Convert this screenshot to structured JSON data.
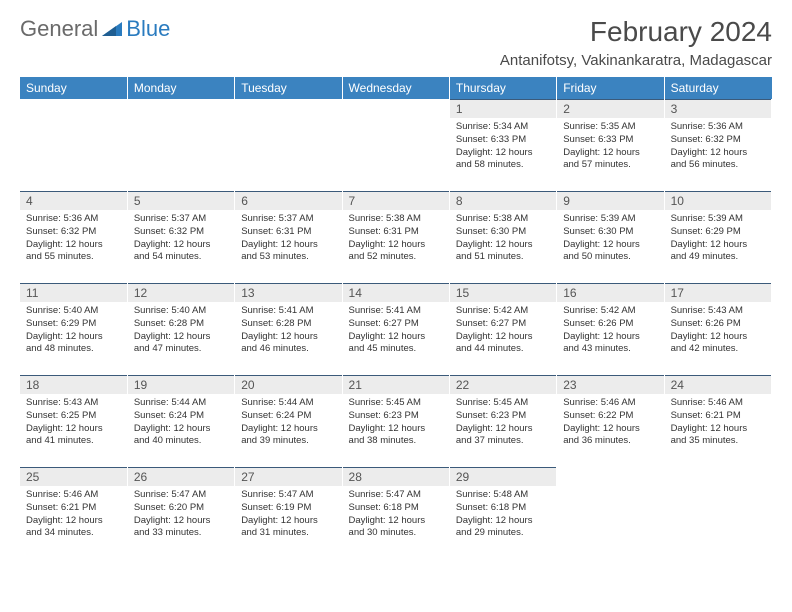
{
  "brand": {
    "part1": "General",
    "part2": "Blue"
  },
  "title": "February 2024",
  "location": "Antanifotsy, Vakinankaratra, Madagascar",
  "colors": {
    "header_bg": "#3b83c0",
    "header_text": "#ffffff",
    "daynum_bg": "#ececec",
    "daynum_border": "#3b5a7a",
    "body_text": "#333333",
    "logo_gray": "#6a6a6a",
    "logo_blue": "#2a7bbf",
    "page_bg": "#ffffff"
  },
  "day_headers": [
    "Sunday",
    "Monday",
    "Tuesday",
    "Wednesday",
    "Thursday",
    "Friday",
    "Saturday"
  ],
  "weeks": [
    [
      {
        "n": "",
        "sr": "",
        "ss": "",
        "dl": ""
      },
      {
        "n": "",
        "sr": "",
        "ss": "",
        "dl": ""
      },
      {
        "n": "",
        "sr": "",
        "ss": "",
        "dl": ""
      },
      {
        "n": "",
        "sr": "",
        "ss": "",
        "dl": ""
      },
      {
        "n": "1",
        "sr": "Sunrise: 5:34 AM",
        "ss": "Sunset: 6:33 PM",
        "dl": "Daylight: 12 hours and 58 minutes."
      },
      {
        "n": "2",
        "sr": "Sunrise: 5:35 AM",
        "ss": "Sunset: 6:33 PM",
        "dl": "Daylight: 12 hours and 57 minutes."
      },
      {
        "n": "3",
        "sr": "Sunrise: 5:36 AM",
        "ss": "Sunset: 6:32 PM",
        "dl": "Daylight: 12 hours and 56 minutes."
      }
    ],
    [
      {
        "n": "4",
        "sr": "Sunrise: 5:36 AM",
        "ss": "Sunset: 6:32 PM",
        "dl": "Daylight: 12 hours and 55 minutes."
      },
      {
        "n": "5",
        "sr": "Sunrise: 5:37 AM",
        "ss": "Sunset: 6:32 PM",
        "dl": "Daylight: 12 hours and 54 minutes."
      },
      {
        "n": "6",
        "sr": "Sunrise: 5:37 AM",
        "ss": "Sunset: 6:31 PM",
        "dl": "Daylight: 12 hours and 53 minutes."
      },
      {
        "n": "7",
        "sr": "Sunrise: 5:38 AM",
        "ss": "Sunset: 6:31 PM",
        "dl": "Daylight: 12 hours and 52 minutes."
      },
      {
        "n": "8",
        "sr": "Sunrise: 5:38 AM",
        "ss": "Sunset: 6:30 PM",
        "dl": "Daylight: 12 hours and 51 minutes."
      },
      {
        "n": "9",
        "sr": "Sunrise: 5:39 AM",
        "ss": "Sunset: 6:30 PM",
        "dl": "Daylight: 12 hours and 50 minutes."
      },
      {
        "n": "10",
        "sr": "Sunrise: 5:39 AM",
        "ss": "Sunset: 6:29 PM",
        "dl": "Daylight: 12 hours and 49 minutes."
      }
    ],
    [
      {
        "n": "11",
        "sr": "Sunrise: 5:40 AM",
        "ss": "Sunset: 6:29 PM",
        "dl": "Daylight: 12 hours and 48 minutes."
      },
      {
        "n": "12",
        "sr": "Sunrise: 5:40 AM",
        "ss": "Sunset: 6:28 PM",
        "dl": "Daylight: 12 hours and 47 minutes."
      },
      {
        "n": "13",
        "sr": "Sunrise: 5:41 AM",
        "ss": "Sunset: 6:28 PM",
        "dl": "Daylight: 12 hours and 46 minutes."
      },
      {
        "n": "14",
        "sr": "Sunrise: 5:41 AM",
        "ss": "Sunset: 6:27 PM",
        "dl": "Daylight: 12 hours and 45 minutes."
      },
      {
        "n": "15",
        "sr": "Sunrise: 5:42 AM",
        "ss": "Sunset: 6:27 PM",
        "dl": "Daylight: 12 hours and 44 minutes."
      },
      {
        "n": "16",
        "sr": "Sunrise: 5:42 AM",
        "ss": "Sunset: 6:26 PM",
        "dl": "Daylight: 12 hours and 43 minutes."
      },
      {
        "n": "17",
        "sr": "Sunrise: 5:43 AM",
        "ss": "Sunset: 6:26 PM",
        "dl": "Daylight: 12 hours and 42 minutes."
      }
    ],
    [
      {
        "n": "18",
        "sr": "Sunrise: 5:43 AM",
        "ss": "Sunset: 6:25 PM",
        "dl": "Daylight: 12 hours and 41 minutes."
      },
      {
        "n": "19",
        "sr": "Sunrise: 5:44 AM",
        "ss": "Sunset: 6:24 PM",
        "dl": "Daylight: 12 hours and 40 minutes."
      },
      {
        "n": "20",
        "sr": "Sunrise: 5:44 AM",
        "ss": "Sunset: 6:24 PM",
        "dl": "Daylight: 12 hours and 39 minutes."
      },
      {
        "n": "21",
        "sr": "Sunrise: 5:45 AM",
        "ss": "Sunset: 6:23 PM",
        "dl": "Daylight: 12 hours and 38 minutes."
      },
      {
        "n": "22",
        "sr": "Sunrise: 5:45 AM",
        "ss": "Sunset: 6:23 PM",
        "dl": "Daylight: 12 hours and 37 minutes."
      },
      {
        "n": "23",
        "sr": "Sunrise: 5:46 AM",
        "ss": "Sunset: 6:22 PM",
        "dl": "Daylight: 12 hours and 36 minutes."
      },
      {
        "n": "24",
        "sr": "Sunrise: 5:46 AM",
        "ss": "Sunset: 6:21 PM",
        "dl": "Daylight: 12 hours and 35 minutes."
      }
    ],
    [
      {
        "n": "25",
        "sr": "Sunrise: 5:46 AM",
        "ss": "Sunset: 6:21 PM",
        "dl": "Daylight: 12 hours and 34 minutes."
      },
      {
        "n": "26",
        "sr": "Sunrise: 5:47 AM",
        "ss": "Sunset: 6:20 PM",
        "dl": "Daylight: 12 hours and 33 minutes."
      },
      {
        "n": "27",
        "sr": "Sunrise: 5:47 AM",
        "ss": "Sunset: 6:19 PM",
        "dl": "Daylight: 12 hours and 31 minutes."
      },
      {
        "n": "28",
        "sr": "Sunrise: 5:47 AM",
        "ss": "Sunset: 6:18 PM",
        "dl": "Daylight: 12 hours and 30 minutes."
      },
      {
        "n": "29",
        "sr": "Sunrise: 5:48 AM",
        "ss": "Sunset: 6:18 PM",
        "dl": "Daylight: 12 hours and 29 minutes."
      },
      {
        "n": "",
        "sr": "",
        "ss": "",
        "dl": ""
      },
      {
        "n": "",
        "sr": "",
        "ss": "",
        "dl": ""
      }
    ]
  ]
}
